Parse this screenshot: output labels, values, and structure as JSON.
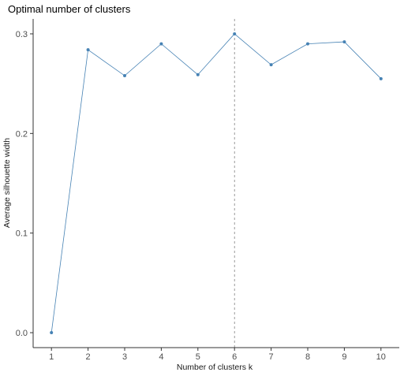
{
  "chart_data": {
    "type": "line",
    "title": "Optimal number of clusters",
    "xlabel": "Number of clusters k",
    "ylabel": "Average silhouette width",
    "x": [
      1,
      2,
      3,
      4,
      5,
      6,
      7,
      8,
      9,
      10
    ],
    "x_tick_labels": [
      "1",
      "2",
      "3",
      "4",
      "5",
      "6",
      "7",
      "8",
      "9",
      "10"
    ],
    "y_tick_values": [
      0.0,
      0.1,
      0.2,
      0.3
    ],
    "y_tick_labels": [
      "0.0",
      "0.1",
      "0.2",
      "0.3"
    ],
    "series": [
      {
        "values": [
          0.0,
          0.284,
          0.258,
          0.29,
          0.259,
          0.3,
          0.269,
          0.29,
          0.292,
          0.255
        ]
      }
    ],
    "xlim": [
      0.5,
      10.5
    ],
    "ylim": [
      -0.015,
      0.315
    ],
    "reference_line_x": 6,
    "grid": false,
    "colors": {
      "series": "#4682b4",
      "reference_line": "#808080",
      "axis": "#333333",
      "tick_text": "#4d4d4d"
    }
  }
}
